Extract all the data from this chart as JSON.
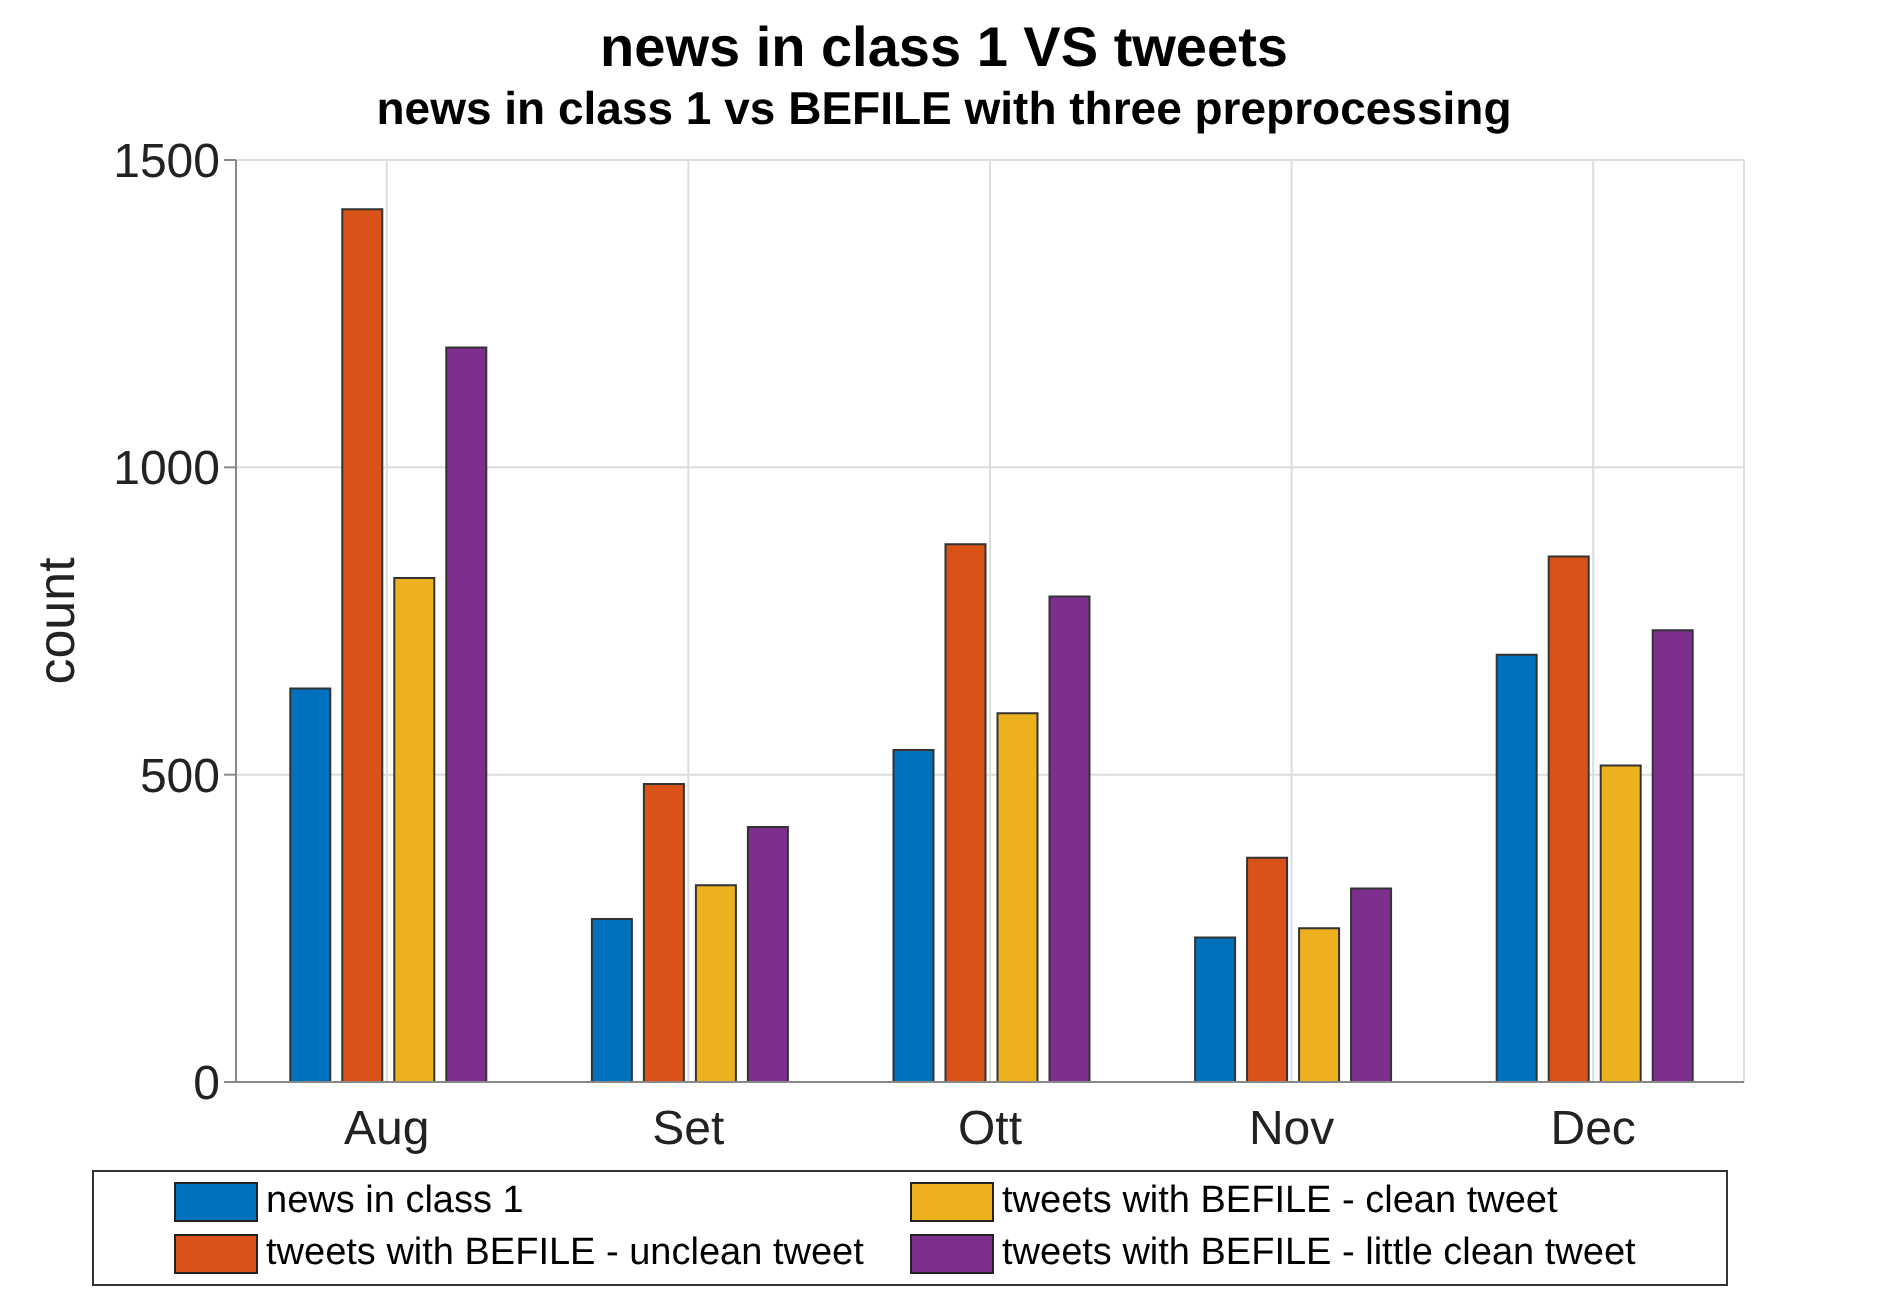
{
  "chart_data": {
    "type": "bar",
    "title": "news in class 1 VS tweets",
    "subtitle": "news in class 1 vs BEFILE with three preprocessing",
    "ylabel": "count",
    "categories": [
      "Aug",
      "Set",
      "Ott",
      "Nov",
      "Dec"
    ],
    "series": [
      {
        "name": "news in class 1",
        "color": "#0072bd",
        "values": [
          640,
          265,
          540,
          235,
          695
        ]
      },
      {
        "name": "tweets with BEFILE - unclean tweet",
        "color": "#d95319",
        "values": [
          1420,
          485,
          875,
          365,
          855
        ]
      },
      {
        "name": "tweets with BEFILE - clean tweet",
        "color": "#edb120",
        "values": [
          820,
          320,
          600,
          250,
          515
        ]
      },
      {
        "name": "tweets with BEFILE - little clean tweet",
        "color": "#7e2f8e",
        "values": [
          1195,
          415,
          790,
          315,
          735
        ]
      }
    ],
    "ylim": [
      0,
      1500
    ],
    "yticks": [
      0,
      500,
      1000,
      1500
    ],
    "grid": true,
    "legend": "bottom"
  }
}
